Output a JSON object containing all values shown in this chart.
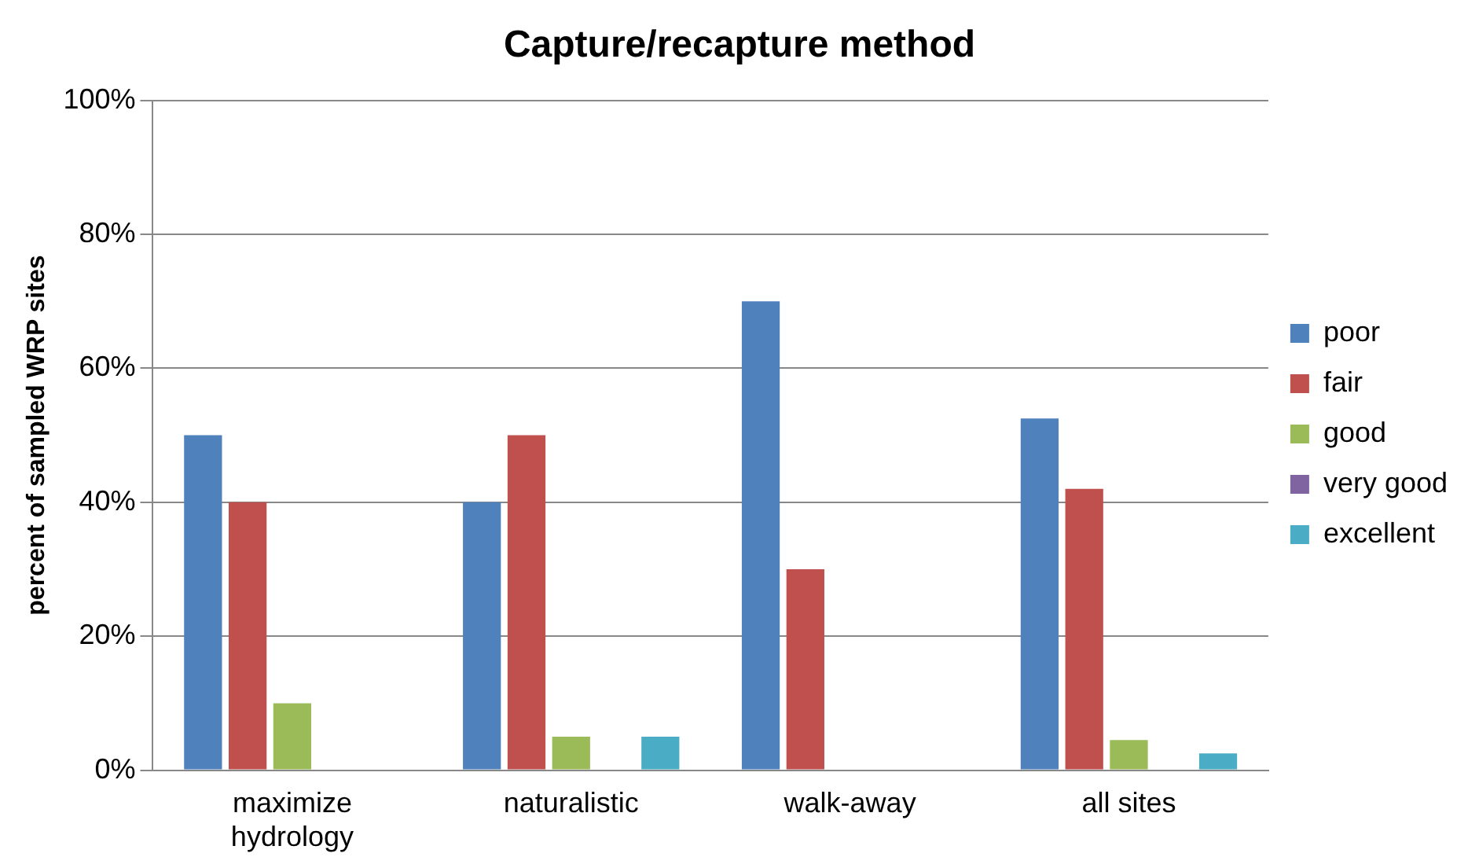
{
  "chart_data": {
    "type": "bar",
    "title": "Capture/recapture method",
    "ylabel": "percent of sampled WRP sites",
    "categories": [
      "maximize hydrology",
      "naturalistic",
      "walk-away",
      "all sites"
    ],
    "series": [
      {
        "name": "poor",
        "color": "#4f81bd",
        "values": [
          50,
          40,
          70,
          52.5
        ]
      },
      {
        "name": "fair",
        "color": "#c0504d",
        "values": [
          40,
          50,
          30,
          42
        ]
      },
      {
        "name": "good",
        "color": "#9bbb59",
        "values": [
          10,
          5,
          0,
          4.5
        ]
      },
      {
        "name": "very good",
        "color": "#8064a2",
        "values": [
          0,
          0,
          0,
          0
        ]
      },
      {
        "name": "excellent",
        "color": "#4bacc6",
        "values": [
          0,
          5,
          0,
          2.5
        ]
      }
    ],
    "ylim": [
      0,
      100
    ],
    "yticks": [
      {
        "value": 0,
        "label": "0%"
      },
      {
        "value": 20,
        "label": "20%"
      },
      {
        "value": 40,
        "label": "40%"
      },
      {
        "value": 60,
        "label": "60%"
      },
      {
        "value": 80,
        "label": "80%"
      },
      {
        "value": 100,
        "label": "100%"
      }
    ],
    "grid": "y",
    "legend": "right"
  }
}
